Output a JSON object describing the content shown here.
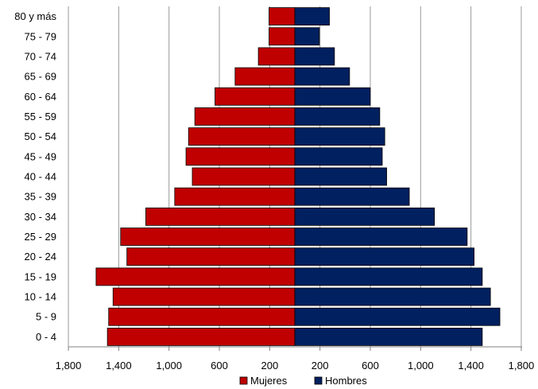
{
  "chart_data": {
    "type": "bar",
    "orientation": "horizontal",
    "subtype": "population-pyramid",
    "categories": [
      "0 - 4",
      "5 - 9",
      "10 - 14",
      "15 - 19",
      "20 - 24",
      "25 - 29",
      "30 - 34",
      "35 - 39",
      "40 - 44",
      "45 - 49",
      "50 - 54",
      "55 - 59",
      "60 - 64",
      "65 - 69",
      "70 - 74",
      "75 - 79",
      "80 y más"
    ],
    "series": [
      {
        "name": "Mujeres",
        "color": "#C00000",
        "side": "left",
        "values": [
          1490,
          1480,
          1445,
          1580,
          1335,
          1385,
          1185,
          955,
          815,
          865,
          845,
          795,
          635,
          475,
          290,
          205,
          205
        ]
      },
      {
        "name": "Hombres",
        "color": "#002060",
        "side": "right",
        "values": [
          1490,
          1630,
          1555,
          1490,
          1425,
          1370,
          1110,
          910,
          730,
          695,
          715,
          675,
          600,
          435,
          315,
          195,
          275
        ]
      }
    ],
    "xaxis": {
      "tick_values": [
        -1800,
        -1400,
        -1000,
        -600,
        -200,
        200,
        600,
        1000,
        1400,
        1800
      ],
      "tick_labels": [
        "1,800",
        "1,400",
        "1,000",
        "600",
        "200",
        "200",
        "600",
        "1,000",
        "1,400",
        "1,800"
      ],
      "range": [
        -1800,
        1800
      ]
    },
    "xlabel": "",
    "ylabel": "",
    "title": "",
    "grid": "vertical",
    "legend": {
      "position": "bottom-center",
      "entries": [
        "Mujeres",
        "Hombres"
      ]
    }
  }
}
